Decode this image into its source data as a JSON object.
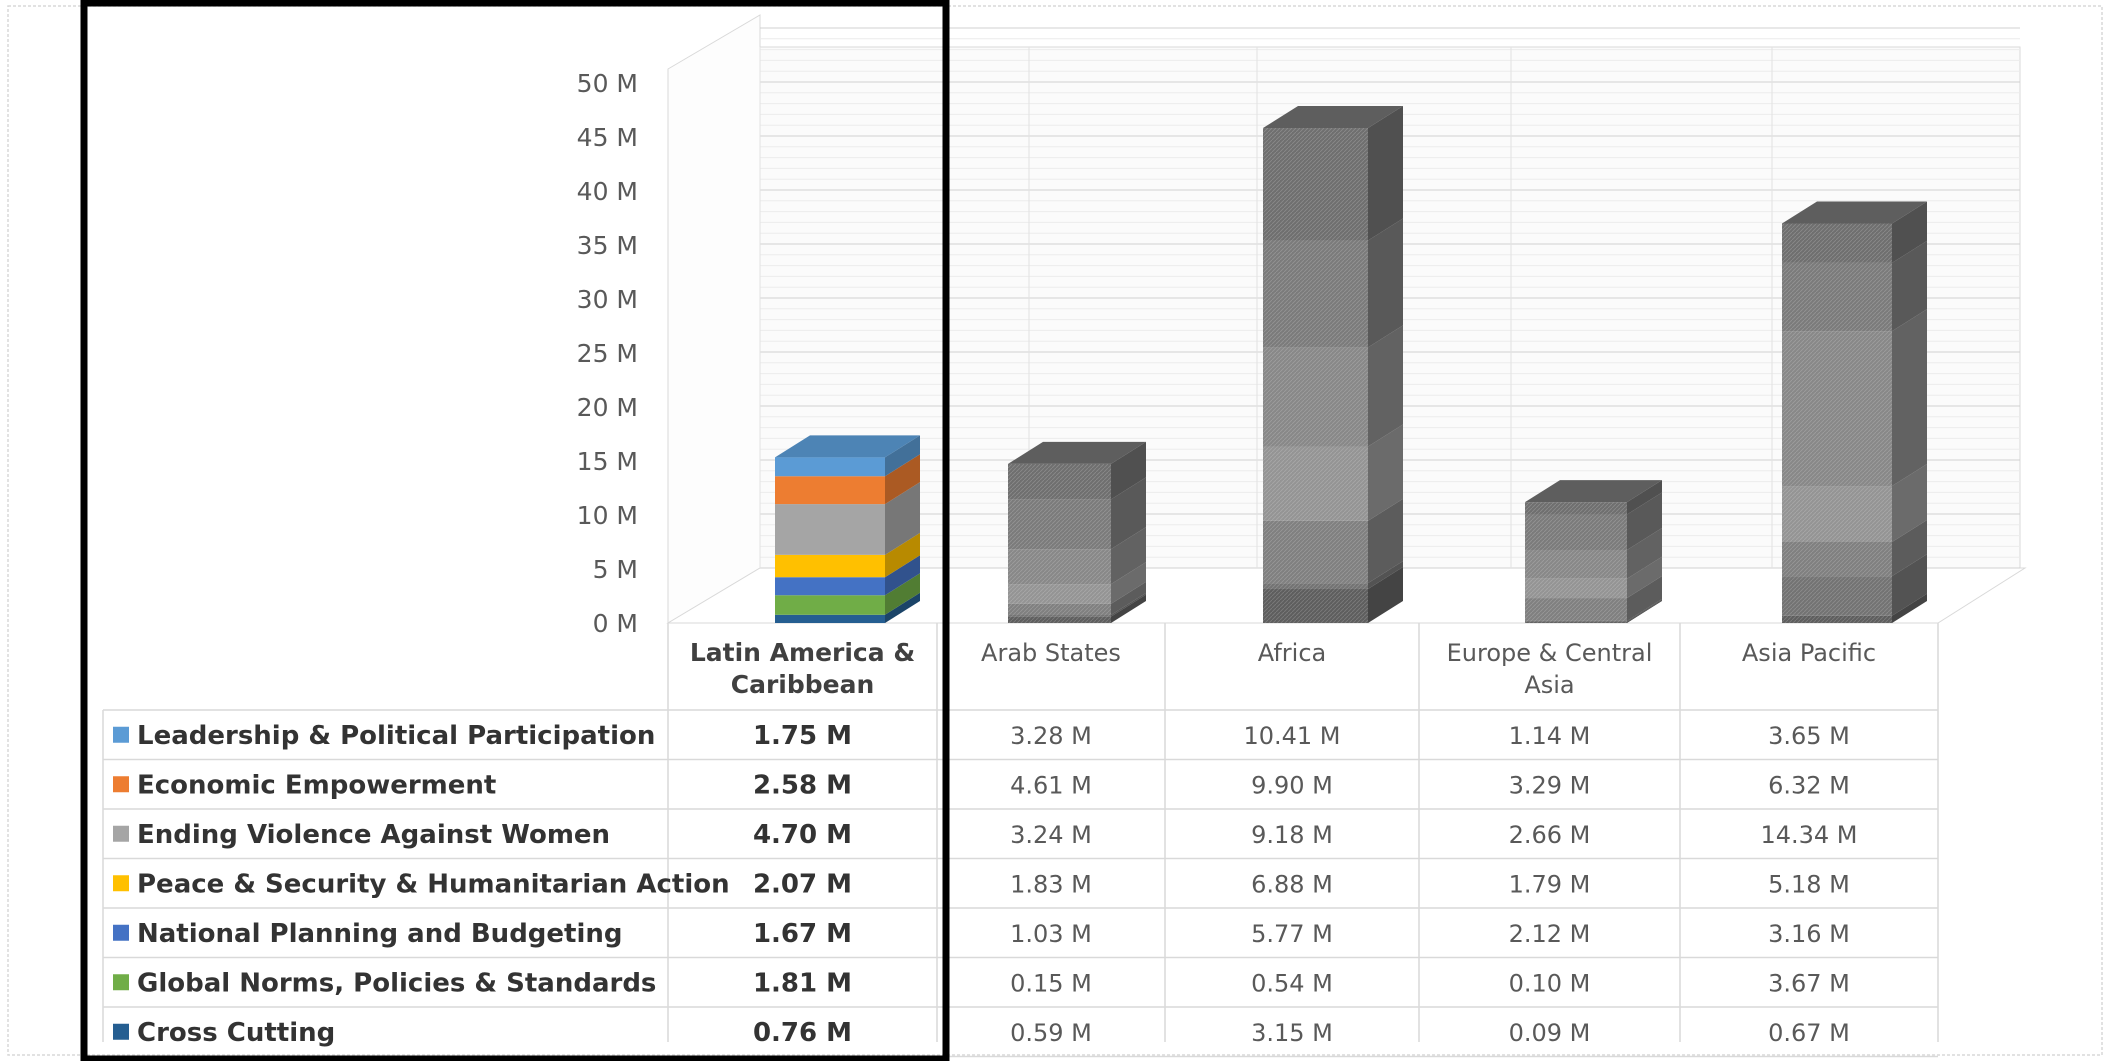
{
  "chart_data": {
    "type": "bar",
    "stacked": true,
    "three_d": true,
    "grid": true,
    "legend": "data-table",
    "ylim": [
      0,
      50
    ],
    "y_unit": "M",
    "y_ticks": [
      "0 M",
      "5 M",
      "10 M",
      "15 M",
      "20 M",
      "25 M",
      "30 M",
      "35 M",
      "40 M",
      "45 M",
      "50 M"
    ],
    "categories": [
      "Latin America & Caribbean",
      "Arab States",
      "Africa",
      "Europe & Central Asia",
      "Asia Pacific"
    ],
    "highlighted_category": "Latin America & Caribbean",
    "series": [
      {
        "name": "Leadership & Political Participation",
        "color": "#5B9BD5",
        "values": [
          1.75,
          3.28,
          10.41,
          1.14,
          3.65
        ],
        "labels": [
          "1.75 M",
          "3.28 M",
          "10.41 M",
          "1.14 M",
          "3.65 M"
        ]
      },
      {
        "name": "Economic Empowerment",
        "color": "#ED7D31",
        "values": [
          2.58,
          4.61,
          9.9,
          3.29,
          6.32
        ],
        "labels": [
          "2.58 M",
          "4.61 M",
          "9.90 M",
          "3.29 M",
          "6.32 M"
        ]
      },
      {
        "name": "Ending Violence Against Women",
        "color": "#A5A5A5",
        "values": [
          4.7,
          3.24,
          9.18,
          2.66,
          14.34
        ],
        "labels": [
          "4.70 M",
          "3.24 M",
          "9.18 M",
          "2.66 M",
          "14.34 M"
        ]
      },
      {
        "name": "Peace & Security & Humanitarian Action",
        "color": "#FFC000",
        "values": [
          2.07,
          1.83,
          6.88,
          1.79,
          5.18
        ],
        "labels": [
          "2.07 M",
          "1.83 M",
          "6.88 M",
          "1.79 M",
          "5.18 M"
        ]
      },
      {
        "name": "National Planning and Budgeting",
        "color": "#4472C4",
        "values": [
          1.67,
          1.03,
          5.77,
          2.12,
          3.16
        ],
        "labels": [
          "1.67 M",
          "1.03 M",
          "5.77 M",
          "2.12 M",
          "3.16 M"
        ]
      },
      {
        "name": "Global Norms, Policies & Standards",
        "color": "#70AD47",
        "values": [
          1.81,
          0.15,
          0.54,
          0.1,
          3.67
        ],
        "labels": [
          "1.81 M",
          "0.15 M",
          "0.54 M",
          "0.10 M",
          "3.67 M"
        ]
      },
      {
        "name": "Cross Cutting",
        "color": "#255E91",
        "values": [
          0.76,
          0.59,
          3.15,
          0.09,
          0.67
        ],
        "labels": [
          "0.76 M",
          "0.59 M",
          "3.15 M",
          "0.09 M",
          "0.67 M"
        ]
      }
    ]
  },
  "style": {
    "muted_colors": [
      "#6F6F6F",
      "#7B7B7B",
      "#888888",
      "#949494",
      "#808080",
      "#737373",
      "#5E5E5E"
    ],
    "highlight_frame_color": "#000000"
  }
}
